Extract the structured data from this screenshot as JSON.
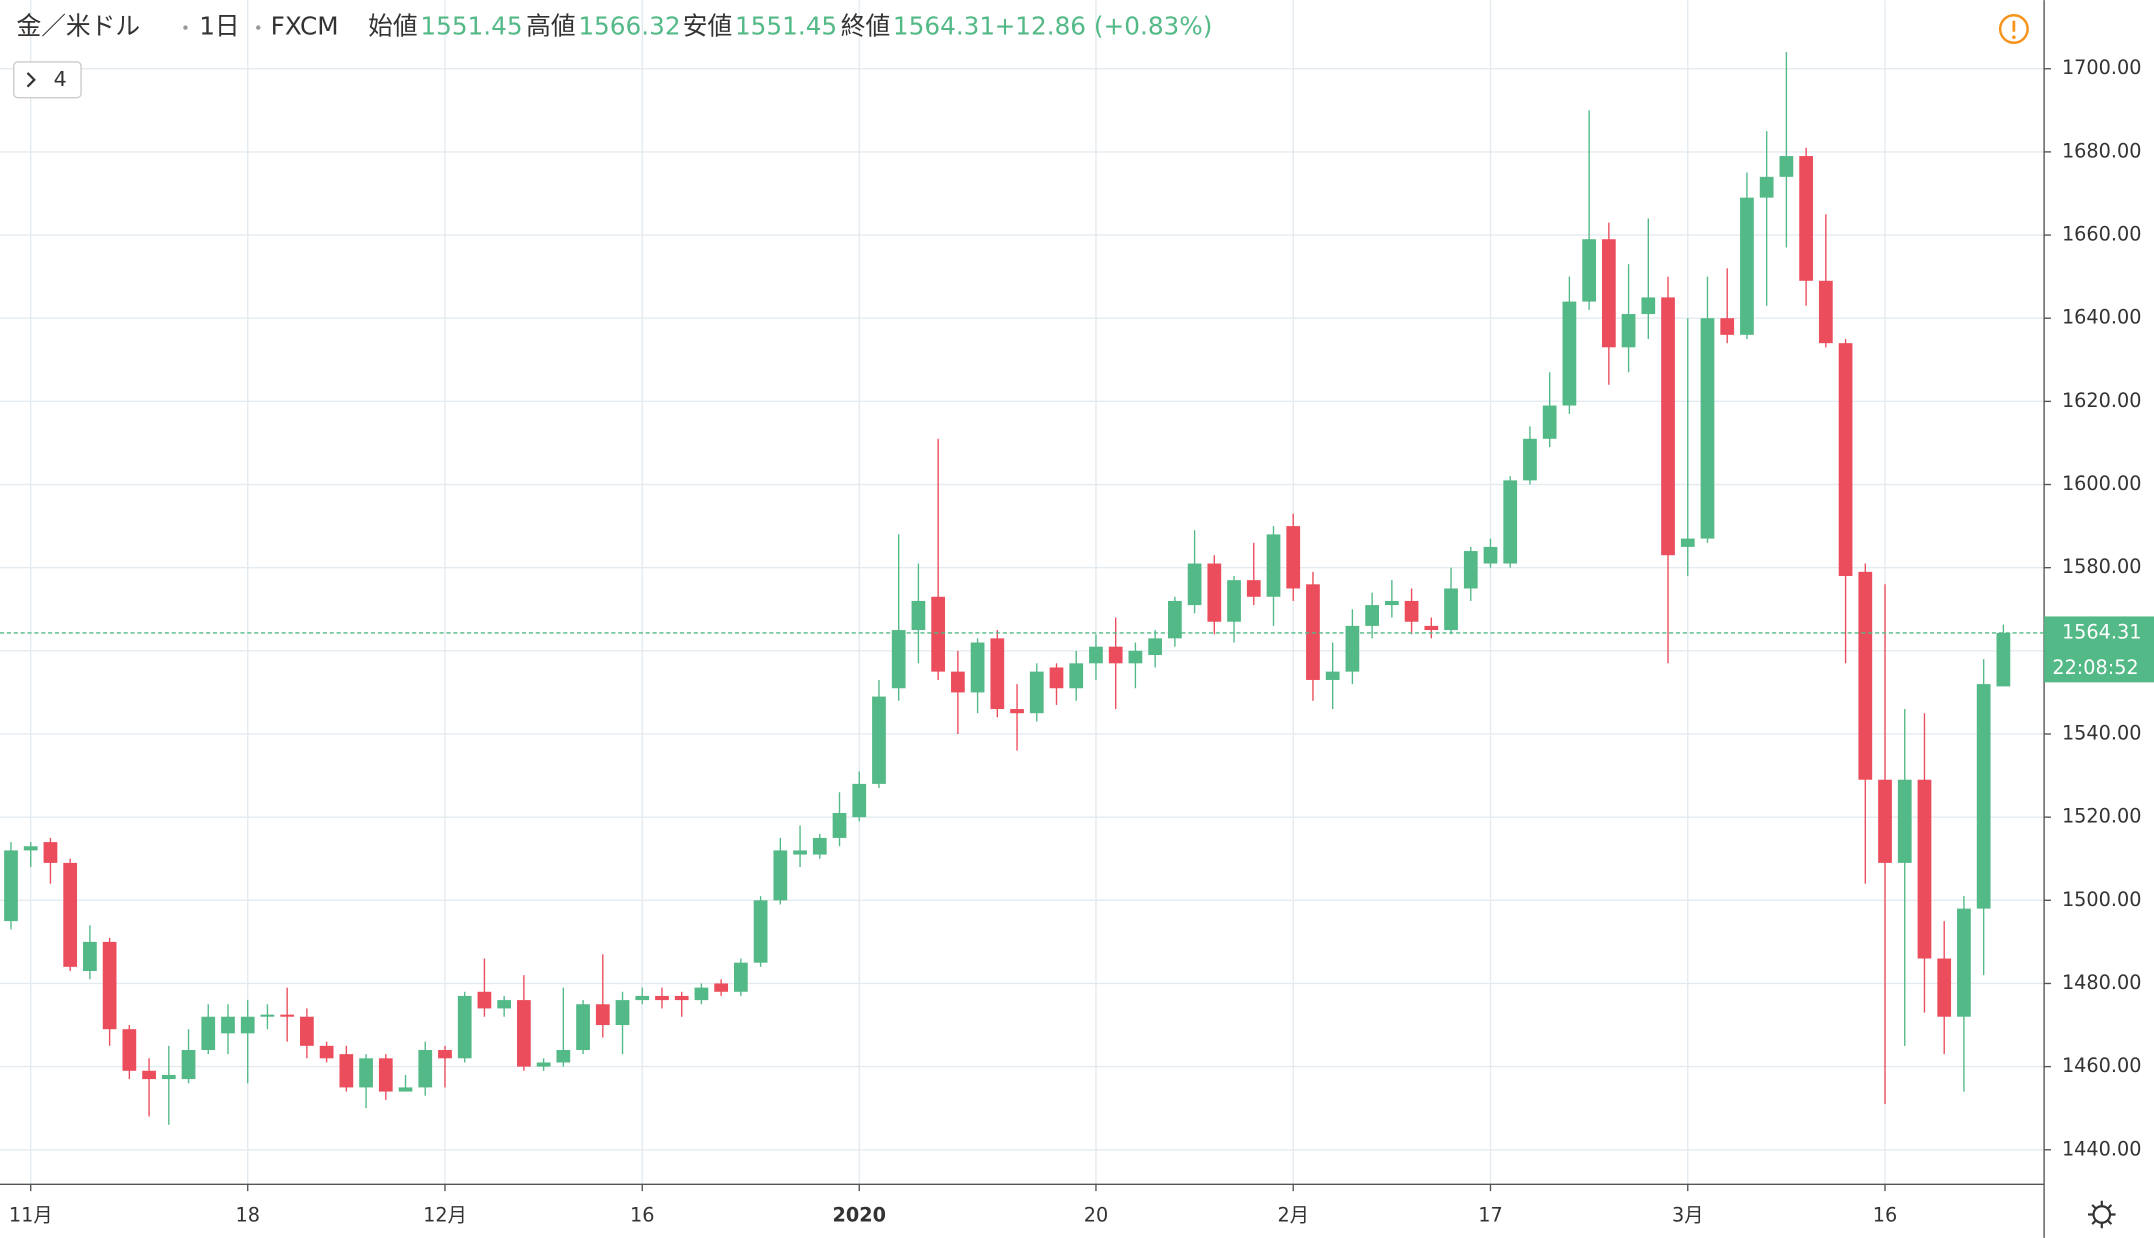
{
  "chart_data": {
    "type": "candlestick",
    "symbol": "金／米ドル",
    "interval": "1日",
    "source": "FXCM",
    "ohlc_labels": {
      "open": "始値",
      "high": "高値",
      "low": "安値",
      "close": "終値"
    },
    "change": "+12.86 (+0.83%)",
    "indicator_count": 4,
    "timer": "22:08:52",
    "up_color": "#53b987",
    "down_color": "#eb4d5c",
    "grid": true,
    "categories": [
      null,
      "11月",
      null,
      null,
      null,
      null,
      null,
      null,
      null,
      null,
      null,
      null,
      "18",
      null,
      null,
      null,
      null,
      null,
      null,
      null,
      null,
      null,
      "12月",
      null,
      null,
      null,
      null,
      null,
      null,
      null,
      null,
      null,
      "16",
      null,
      null,
      null,
      null,
      null,
      null,
      null,
      null,
      null,
      null,
      "2020",
      null,
      null,
      null,
      null,
      null,
      null,
      null,
      null,
      null,
      null,
      null,
      "20",
      null,
      null,
      null,
      null,
      null,
      null,
      null,
      null,
      null,
      "2月",
      null,
      null,
      null,
      null,
      null,
      null,
      null,
      null,
      null,
      "17",
      null,
      null,
      null,
      null,
      null,
      null,
      null,
      null,
      null,
      "3月",
      null,
      null,
      null,
      null,
      null,
      null,
      null,
      null,
      null,
      "16",
      null,
      null,
      null,
      null,
      null,
      null
    ],
    "open": [
      1495,
      1512,
      1514,
      1509,
      1483,
      1490,
      1469,
      1459,
      1457,
      1457,
      1464,
      1468,
      1468,
      1472,
      1472.5,
      1472,
      1465,
      1463,
      1455,
      1462,
      1454,
      1455,
      1464,
      1462,
      1478,
      1474,
      1476,
      1460,
      1461,
      1464,
      1475,
      1470,
      1476,
      1477,
      1477,
      1476,
      1480,
      1478,
      1485,
      1500,
      1511,
      1511,
      1515,
      1520,
      1528,
      1551,
      1565,
      1573,
      1555,
      1550,
      1563,
      1546,
      1545,
      1556,
      1551,
      1557,
      1561,
      1557,
      1559,
      1563,
      1571,
      1581,
      1567,
      1577,
      1573,
      1590,
      1576,
      1553,
      1555,
      1566,
      1571,
      1572,
      1566,
      1565,
      1575,
      1581,
      1581,
      1601,
      1611,
      1619,
      1644,
      1659,
      1633,
      1641,
      1645,
      1585,
      1587,
      1640,
      1636,
      1669,
      1674,
      1679,
      1649,
      1634,
      1579,
      1529,
      1509,
      1529,
      1486,
      1472,
      1498,
      1551.45
    ],
    "high": [
      1514,
      1514,
      1515,
      1510,
      1494,
      1491,
      1470,
      1462,
      1465,
      1469,
      1475,
      1475,
      1476,
      1475,
      1479,
      1474,
      1466,
      1465,
      1463,
      1463,
      1458,
      1466,
      1465,
      1478,
      1486,
      1477,
      1482,
      1462,
      1479,
      1476,
      1487,
      1478,
      1479,
      1479,
      1478,
      1480,
      1481,
      1486,
      1501,
      1515,
      1518,
      1516,
      1526,
      1531,
      1553,
      1588,
      1581,
      1611,
      1560,
      1563,
      1565,
      1552,
      1557,
      1557,
      1560,
      1564,
      1568,
      1562,
      1565,
      1573,
      1589,
      1583,
      1578,
      1586,
      1590,
      1593,
      1579,
      1562,
      1570,
      1574,
      1577,
      1575,
      1568,
      1580,
      1585,
      1587,
      1602,
      1614,
      1627,
      1650,
      1690,
      1663,
      1653,
      1664,
      1650,
      1640,
      1650,
      1652,
      1675,
      1685,
      1704,
      1681,
      1665,
      1635,
      1581,
      1576,
      1546,
      1545,
      1495,
      1501,
      1558,
      1566.32
    ],
    "low": [
      1493,
      1508,
      1504,
      1483,
      1481,
      1465,
      1457,
      1448,
      1446,
      1456,
      1463,
      1463,
      1456,
      1469,
      1466,
      1462,
      1461,
      1454,
      1450,
      1452,
      1454,
      1453,
      1455,
      1461,
      1472,
      1472,
      1459,
      1459,
      1460,
      1463,
      1467,
      1463,
      1475,
      1474,
      1472,
      1475,
      1477,
      1477,
      1484,
      1499,
      1508,
      1510,
      1513,
      1519,
      1527,
      1548,
      1557,
      1553,
      1540,
      1545,
      1544,
      1536,
      1543,
      1547,
      1548,
      1553,
      1546,
      1551,
      1556,
      1561,
      1569,
      1564,
      1562,
      1571,
      1566,
      1572,
      1548,
      1546,
      1552,
      1563,
      1568,
      1564,
      1563,
      1564,
      1572,
      1580,
      1580,
      1600,
      1609,
      1617,
      1642,
      1624,
      1627,
      1635,
      1557,
      1578,
      1586,
      1634,
      1635,
      1643,
      1657,
      1643,
      1633,
      1557,
      1504,
      1451,
      1465,
      1473,
      1463,
      1454,
      1482,
      1551.45
    ],
    "close": [
      1512,
      1513,
      1509,
      1484,
      1490,
      1469,
      1459,
      1457,
      1458,
      1464,
      1472,
      1472,
      1472,
      1472.5,
      1472,
      1465,
      1462,
      1455,
      1462,
      1454,
      1455,
      1464,
      1462,
      1477,
      1474,
      1476,
      1460,
      1461,
      1464,
      1475,
      1470,
      1476,
      1477,
      1476,
      1476,
      1479,
      1478,
      1485,
      1500,
      1512,
      1512,
      1515,
      1521,
      1528,
      1549,
      1565,
      1572,
      1555,
      1550,
      1562,
      1546,
      1545,
      1555,
      1551,
      1557,
      1561,
      1557,
      1560,
      1563,
      1572,
      1581,
      1567,
      1577,
      1573,
      1588,
      1575,
      1553,
      1555,
      1566,
      1571,
      1572,
      1567,
      1565,
      1575,
      1584,
      1585,
      1601,
      1611,
      1619,
      1644,
      1659,
      1633,
      1641,
      1645,
      1583,
      1587,
      1640,
      1636,
      1669,
      1674,
      1679,
      1649,
      1634,
      1578,
      1529,
      1509,
      1529,
      1486,
      1472,
      1498,
      1552,
      1564.31
    ],
    "ylim": [
      1431.7,
      1716.5
    ],
    "yticks": [
      {
        "value": 1440,
        "label": "1440.00"
      },
      {
        "value": 1460,
        "label": "1460.00"
      },
      {
        "value": 1480,
        "label": "1480.00"
      },
      {
        "value": 1500,
        "label": "1500.00"
      },
      {
        "value": 1520,
        "label": "1520.00"
      },
      {
        "value": 1540,
        "label": "1540.00"
      },
      {
        "value": 1560,
        "label": "1560.00"
      },
      {
        "value": 1580,
        "label": "1580.00"
      },
      {
        "value": 1600,
        "label": "1600.00"
      },
      {
        "value": 1620,
        "label": "1620.00"
      },
      {
        "value": 1640,
        "label": "1640.00"
      },
      {
        "value": 1660,
        "label": "1660.00"
      },
      {
        "value": 1680,
        "label": "1680.00"
      },
      {
        "value": 1700,
        "label": "1700.00"
      }
    ]
  }
}
